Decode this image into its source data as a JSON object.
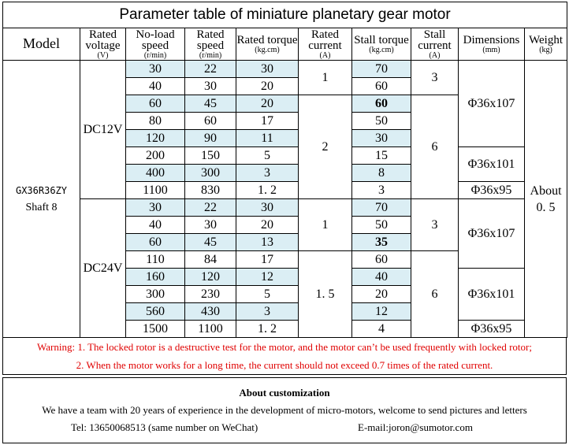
{
  "title": "Parameter table of miniature planetary gear motor",
  "header": {
    "columns": [
      {
        "name": "Model"
      },
      {
        "name": "Rated voltage",
        "unit": "(V)"
      },
      {
        "name": "No-load speed",
        "unit": "(r/min)"
      },
      {
        "name": "Rated speed",
        "unit": "(r/min)"
      },
      {
        "name": "Rated torque",
        "unit": "(kg.cm)"
      },
      {
        "name": "Rated current",
        "unit": "(A)"
      },
      {
        "name": "Stall torque",
        "unit": "(kg.cm)"
      },
      {
        "name": "Stall current",
        "unit": "(A)"
      },
      {
        "name": "Dimensions",
        "unit": "(mm)"
      },
      {
        "name": "Weight",
        "unit": "(kg)"
      }
    ]
  },
  "model": {
    "name": "GX36R36ZY",
    "shaft": "Shaft 8"
  },
  "weight": {
    "line1": "About",
    "line2": "0. 5"
  },
  "groups": [
    {
      "voltage": "DC12V",
      "rows": [
        {
          "no_load_speed": 30,
          "rated_speed": 22,
          "rated_torque": "30",
          "stall_torque": 70
        },
        {
          "no_load_speed": 40,
          "rated_speed": 30,
          "rated_torque": "20",
          "stall_torque": 60
        },
        {
          "no_load_speed": 60,
          "rated_speed": 45,
          "rated_torque": "20",
          "stall_torque": 60,
          "bold": true
        },
        {
          "no_load_speed": 80,
          "rated_speed": 60,
          "rated_torque": "17",
          "stall_torque": 50
        },
        {
          "no_load_speed": 120,
          "rated_speed": 90,
          "rated_torque": "11",
          "stall_torque": 30
        },
        {
          "no_load_speed": 200,
          "rated_speed": 150,
          "rated_torque": "5",
          "stall_torque": 15
        },
        {
          "no_load_speed": 400,
          "rated_speed": 300,
          "rated_torque": "3",
          "stall_torque": 8
        },
        {
          "no_load_speed": 1100,
          "rated_speed": 830,
          "rated_torque": "1. 2",
          "stall_torque": 3
        }
      ],
      "rated_current": [
        {
          "text": "1",
          "span": 2
        },
        {
          "text": "2",
          "span": 6
        }
      ],
      "stall_current": [
        {
          "text": "3",
          "span": 2
        },
        {
          "text": "6",
          "span": 6
        }
      ],
      "dimensions": [
        {
          "text": "Φ36x107",
          "span": 5
        },
        {
          "text": "Φ36x101",
          "span": 2
        },
        {
          "text": "Φ36x95",
          "span": 1
        }
      ]
    },
    {
      "voltage": "DC24V",
      "rows": [
        {
          "no_load_speed": 30,
          "rated_speed": 22,
          "rated_torque": "30",
          "stall_torque": 70
        },
        {
          "no_load_speed": 40,
          "rated_speed": 30,
          "rated_torque": "20",
          "stall_torque": 50
        },
        {
          "no_load_speed": 60,
          "rated_speed": 45,
          "rated_torque": "13",
          "stall_torque": 35,
          "bold": true
        },
        {
          "no_load_speed": 110,
          "rated_speed": 84,
          "rated_torque": "17",
          "stall_torque": 60
        },
        {
          "no_load_speed": 160,
          "rated_speed": 120,
          "rated_torque": "12",
          "stall_torque": 40
        },
        {
          "no_load_speed": 300,
          "rated_speed": 230,
          "rated_torque": "5",
          "stall_torque": 20
        },
        {
          "no_load_speed": 560,
          "rated_speed": 430,
          "rated_torque": "3",
          "stall_torque": 12
        },
        {
          "no_load_speed": 1500,
          "rated_speed": 1100,
          "rated_torque": "1. 2",
          "stall_torque": 4
        }
      ],
      "rated_current": [
        {
          "text": "1",
          "span": 3
        },
        {
          "text": "1. 5",
          "span": 5
        }
      ],
      "stall_current": [
        {
          "text": "3",
          "span": 3
        },
        {
          "text": "6",
          "span": 5
        }
      ],
      "dimensions": [
        {
          "text": "Φ36x107",
          "span": 4
        },
        {
          "text": "Φ36x101",
          "span": 3
        },
        {
          "text": "Φ36x95",
          "span": 1
        }
      ]
    }
  ],
  "warnings": [
    "Warning: 1. The locked rotor is a destructive test for the motor, and the motor can’t be used frequently with locked rotor;",
    "2. When the motor works for a long time, the current should not exceed 0.7 times of the rated current."
  ],
  "customization": {
    "title": "About customization",
    "text": "We have a team with 20 years of experience in the development of micro-motors, welcome to send pictures and letters",
    "tel": "Tel: 13650068513 (same number on WeChat)",
    "email": "E-mail:joron@sumotor.com"
  }
}
